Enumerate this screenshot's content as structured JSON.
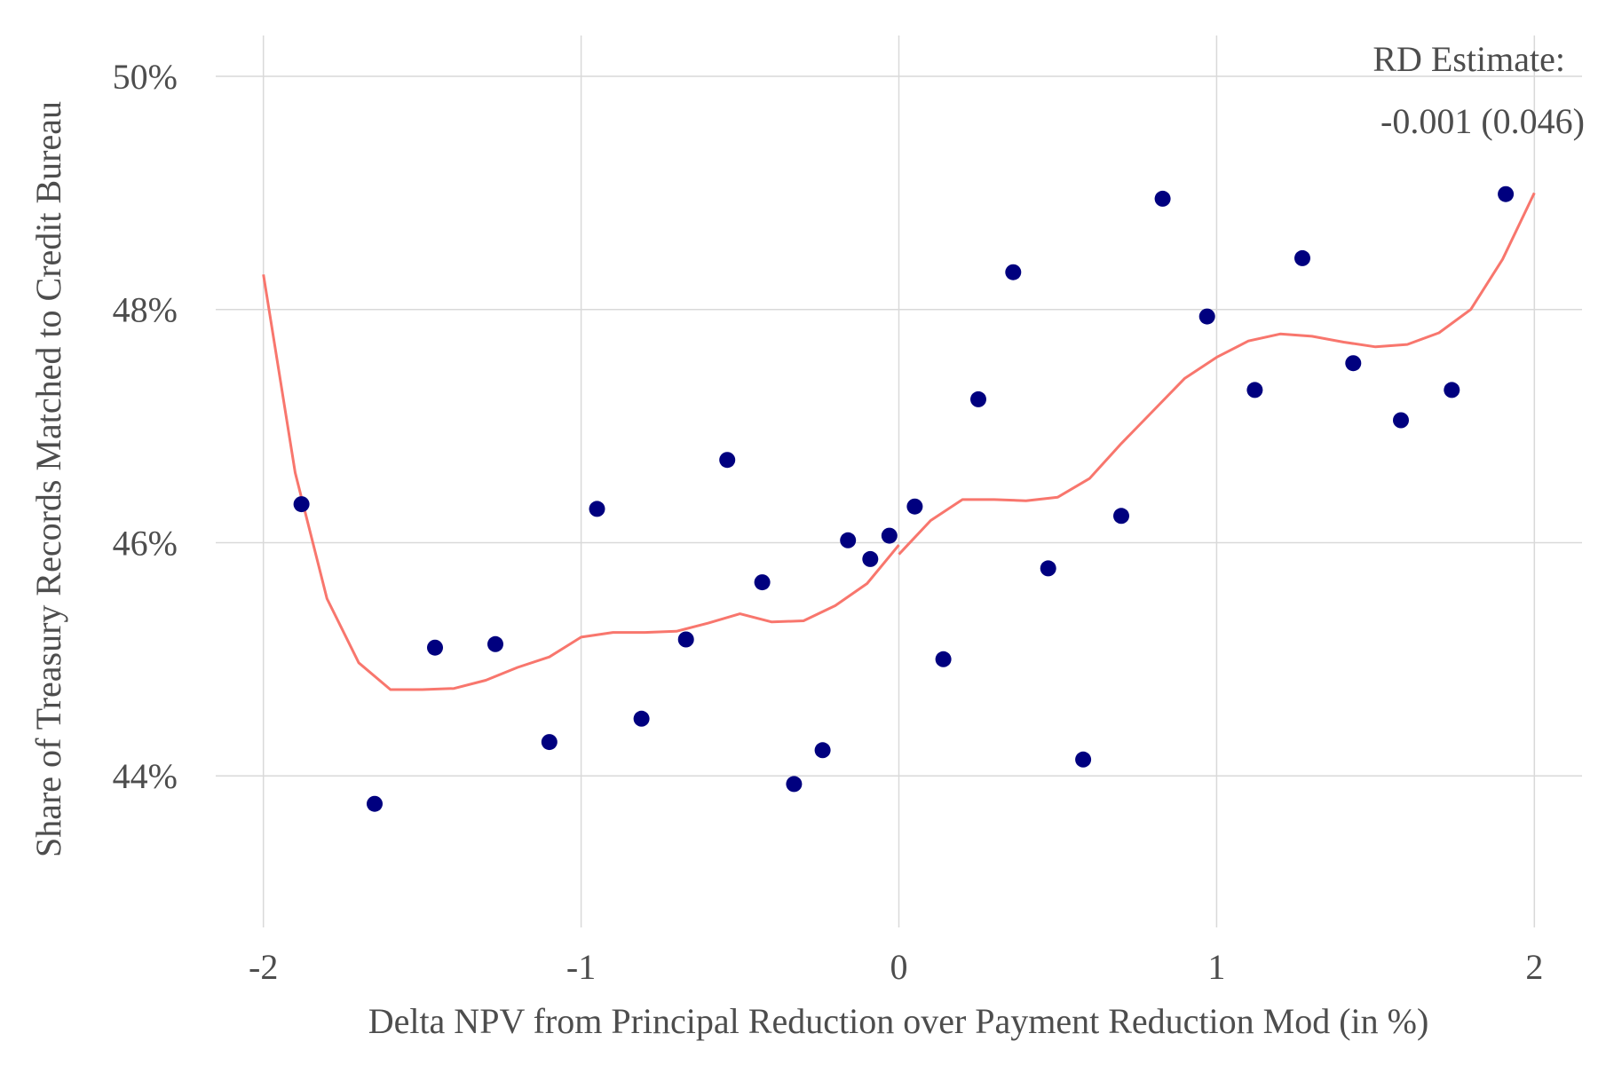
{
  "chart_data": {
    "type": "scatter",
    "xlabel": "Delta NPV from Principal Reduction over Payment Reduction Mod (in %)",
    "ylabel": "Share of Treasury Records Matched to Credit Bureau",
    "xlim": [
      -2.15,
      2.15
    ],
    "ylim": [
      42.7,
      50.35
    ],
    "x_ticks": [
      -2,
      -1,
      0,
      1,
      2
    ],
    "x_tick_labels": [
      "-2",
      "-1",
      "0",
      "1",
      "2"
    ],
    "y_ticks": [
      44,
      46,
      48,
      50
    ],
    "y_tick_labels": [
      "44%",
      "46%",
      "48%",
      "50%"
    ],
    "grid": true,
    "annotation": [
      "RD Estimate:",
      "-0.001 (0.046)"
    ],
    "colors": {
      "points": "#00007f",
      "line": "#f8766d",
      "grid": "#d9d9d9",
      "text": "#4d4d4d"
    },
    "series": [
      {
        "type": "scatter",
        "points": [
          {
            "x": -1.88,
            "y": 46.33
          },
          {
            "x": -1.65,
            "y": 43.76
          },
          {
            "x": -1.46,
            "y": 45.1
          },
          {
            "x": -1.27,
            "y": 45.13
          },
          {
            "x": -1.1,
            "y": 44.29
          },
          {
            "x": -0.95,
            "y": 46.29
          },
          {
            "x": -0.81,
            "y": 44.49
          },
          {
            "x": -0.67,
            "y": 45.17
          },
          {
            "x": -0.54,
            "y": 46.71
          },
          {
            "x": -0.43,
            "y": 45.66
          },
          {
            "x": -0.33,
            "y": 43.93
          },
          {
            "x": -0.24,
            "y": 44.22
          },
          {
            "x": -0.16,
            "y": 46.02
          },
          {
            "x": -0.09,
            "y": 45.86
          },
          {
            "x": -0.03,
            "y": 46.06
          },
          {
            "x": 0.05,
            "y": 46.31
          },
          {
            "x": 0.14,
            "y": 45.0
          },
          {
            "x": 0.25,
            "y": 47.23
          },
          {
            "x": 0.36,
            "y": 48.32
          },
          {
            "x": 0.47,
            "y": 45.78
          },
          {
            "x": 0.58,
            "y": 44.14
          },
          {
            "x": 0.7,
            "y": 46.23
          },
          {
            "x": 0.83,
            "y": 48.95
          },
          {
            "x": 0.97,
            "y": 47.94
          },
          {
            "x": 1.12,
            "y": 47.31
          },
          {
            "x": 1.27,
            "y": 48.44
          },
          {
            "x": 1.43,
            "y": 47.54
          },
          {
            "x": 1.58,
            "y": 47.05
          },
          {
            "x": 1.74,
            "y": 47.31
          },
          {
            "x": 1.91,
            "y": 48.99
          }
        ]
      },
      {
        "type": "line",
        "segment": "left",
        "points": [
          {
            "x": -2.0,
            "y": 48.3
          },
          {
            "x": -1.9,
            "y": 46.6
          },
          {
            "x": -1.8,
            "y": 45.52
          },
          {
            "x": -1.7,
            "y": 44.97
          },
          {
            "x": -1.6,
            "y": 44.74
          },
          {
            "x": -1.5,
            "y": 44.74
          },
          {
            "x": -1.4,
            "y": 44.75
          },
          {
            "x": -1.3,
            "y": 44.82
          },
          {
            "x": -1.2,
            "y": 44.93
          },
          {
            "x": -1.1,
            "y": 45.02
          },
          {
            "x": -1.0,
            "y": 45.19
          },
          {
            "x": -0.9,
            "y": 45.23
          },
          {
            "x": -0.8,
            "y": 45.23
          },
          {
            "x": -0.7,
            "y": 45.24
          },
          {
            "x": -0.6,
            "y": 45.31
          },
          {
            "x": -0.5,
            "y": 45.39
          },
          {
            "x": -0.4,
            "y": 45.32
          },
          {
            "x": -0.3,
            "y": 45.33
          },
          {
            "x": -0.2,
            "y": 45.46
          },
          {
            "x": -0.1,
            "y": 45.65
          },
          {
            "x": 0.0,
            "y": 45.98
          }
        ]
      },
      {
        "type": "line",
        "segment": "right",
        "points": [
          {
            "x": 0.0,
            "y": 45.9
          },
          {
            "x": 0.1,
            "y": 46.19
          },
          {
            "x": 0.2,
            "y": 46.37
          },
          {
            "x": 0.3,
            "y": 46.37
          },
          {
            "x": 0.4,
            "y": 46.36
          },
          {
            "x": 0.5,
            "y": 46.39
          },
          {
            "x": 0.6,
            "y": 46.55
          },
          {
            "x": 0.7,
            "y": 46.85
          },
          {
            "x": 0.8,
            "y": 47.13
          },
          {
            "x": 0.9,
            "y": 47.41
          },
          {
            "x": 1.0,
            "y": 47.59
          },
          {
            "x": 1.1,
            "y": 47.73
          },
          {
            "x": 1.2,
            "y": 47.79
          },
          {
            "x": 1.3,
            "y": 47.77
          },
          {
            "x": 1.4,
            "y": 47.72
          },
          {
            "x": 1.5,
            "y": 47.68
          },
          {
            "x": 1.6,
            "y": 47.7
          },
          {
            "x": 1.7,
            "y": 47.8
          },
          {
            "x": 1.8,
            "y": 48.0
          },
          {
            "x": 1.9,
            "y": 48.43
          },
          {
            "x": 2.0,
            "y": 49.0
          }
        ]
      }
    ]
  }
}
